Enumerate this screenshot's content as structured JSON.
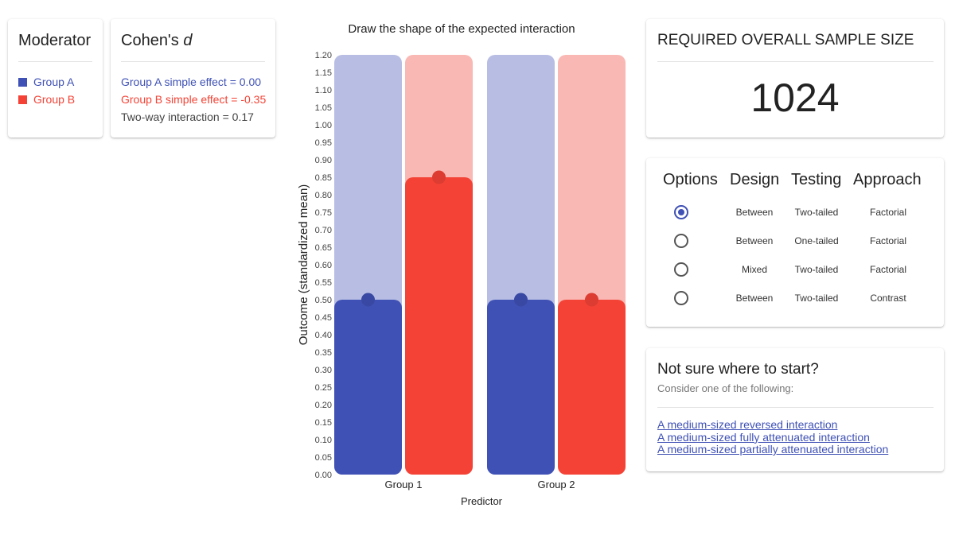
{
  "moderator": {
    "title": "Moderator",
    "items": [
      {
        "label": "Group A",
        "color": "#3f51b5"
      },
      {
        "label": "Group B",
        "color": "#f44336"
      }
    ]
  },
  "cohens_d": {
    "title": "Cohen's",
    "title_symbol": "d",
    "group_a_effect": "Group A simple effect = 0.00",
    "group_b_effect": "Group B simple effect = -0.35",
    "interaction": "Two-way interaction = 0.17"
  },
  "sample_size": {
    "title": "REQUIRED OVERALL SAMPLE SIZE",
    "value": "1024"
  },
  "options": {
    "headers": [
      "Options",
      "Design",
      "Testing",
      "Approach"
    ],
    "rows": [
      {
        "selected": true,
        "design": "Between",
        "testing": "Two-tailed",
        "approach": "Factorial"
      },
      {
        "selected": false,
        "design": "Between",
        "testing": "One-tailed",
        "approach": "Factorial"
      },
      {
        "selected": false,
        "design": "Mixed",
        "testing": "Two-tailed",
        "approach": "Factorial"
      },
      {
        "selected": false,
        "design": "Between",
        "testing": "Two-tailed",
        "approach": "Contrast"
      }
    ]
  },
  "suggestions": {
    "title": "Not sure where to start?",
    "subtitle": "Consider one of the following:",
    "links": [
      "A medium-sized reversed interaction",
      "A medium-sized fully attenuated interaction",
      "A medium-sized partially attenuated interaction"
    ]
  },
  "chart_data": {
    "type": "bar",
    "title": "Draw the shape of the expected interaction",
    "xlabel": "Predictor",
    "ylabel": "Outcome (standardized mean)",
    "ylim": [
      0,
      1.2
    ],
    "yticks": [
      "0.00",
      "0.05",
      "0.10",
      "0.15",
      "0.20",
      "0.25",
      "0.30",
      "0.35",
      "0.40",
      "0.45",
      "0.50",
      "0.55",
      "0.60",
      "0.65",
      "0.70",
      "0.75",
      "0.80",
      "0.85",
      "0.90",
      "0.95",
      "1.00",
      "1.05",
      "1.10",
      "1.15",
      "1.20"
    ],
    "categories": [
      "Group 1",
      "Group 2"
    ],
    "series": [
      {
        "name": "Group A",
        "values": [
          0.5,
          0.5
        ],
        "color": "#3f51b5",
        "light_color": "#b8bee3"
      },
      {
        "name": "Group B",
        "values": [
          0.85,
          0.5
        ],
        "color": "#f44336",
        "light_color": "#f9b8b3"
      }
    ]
  }
}
